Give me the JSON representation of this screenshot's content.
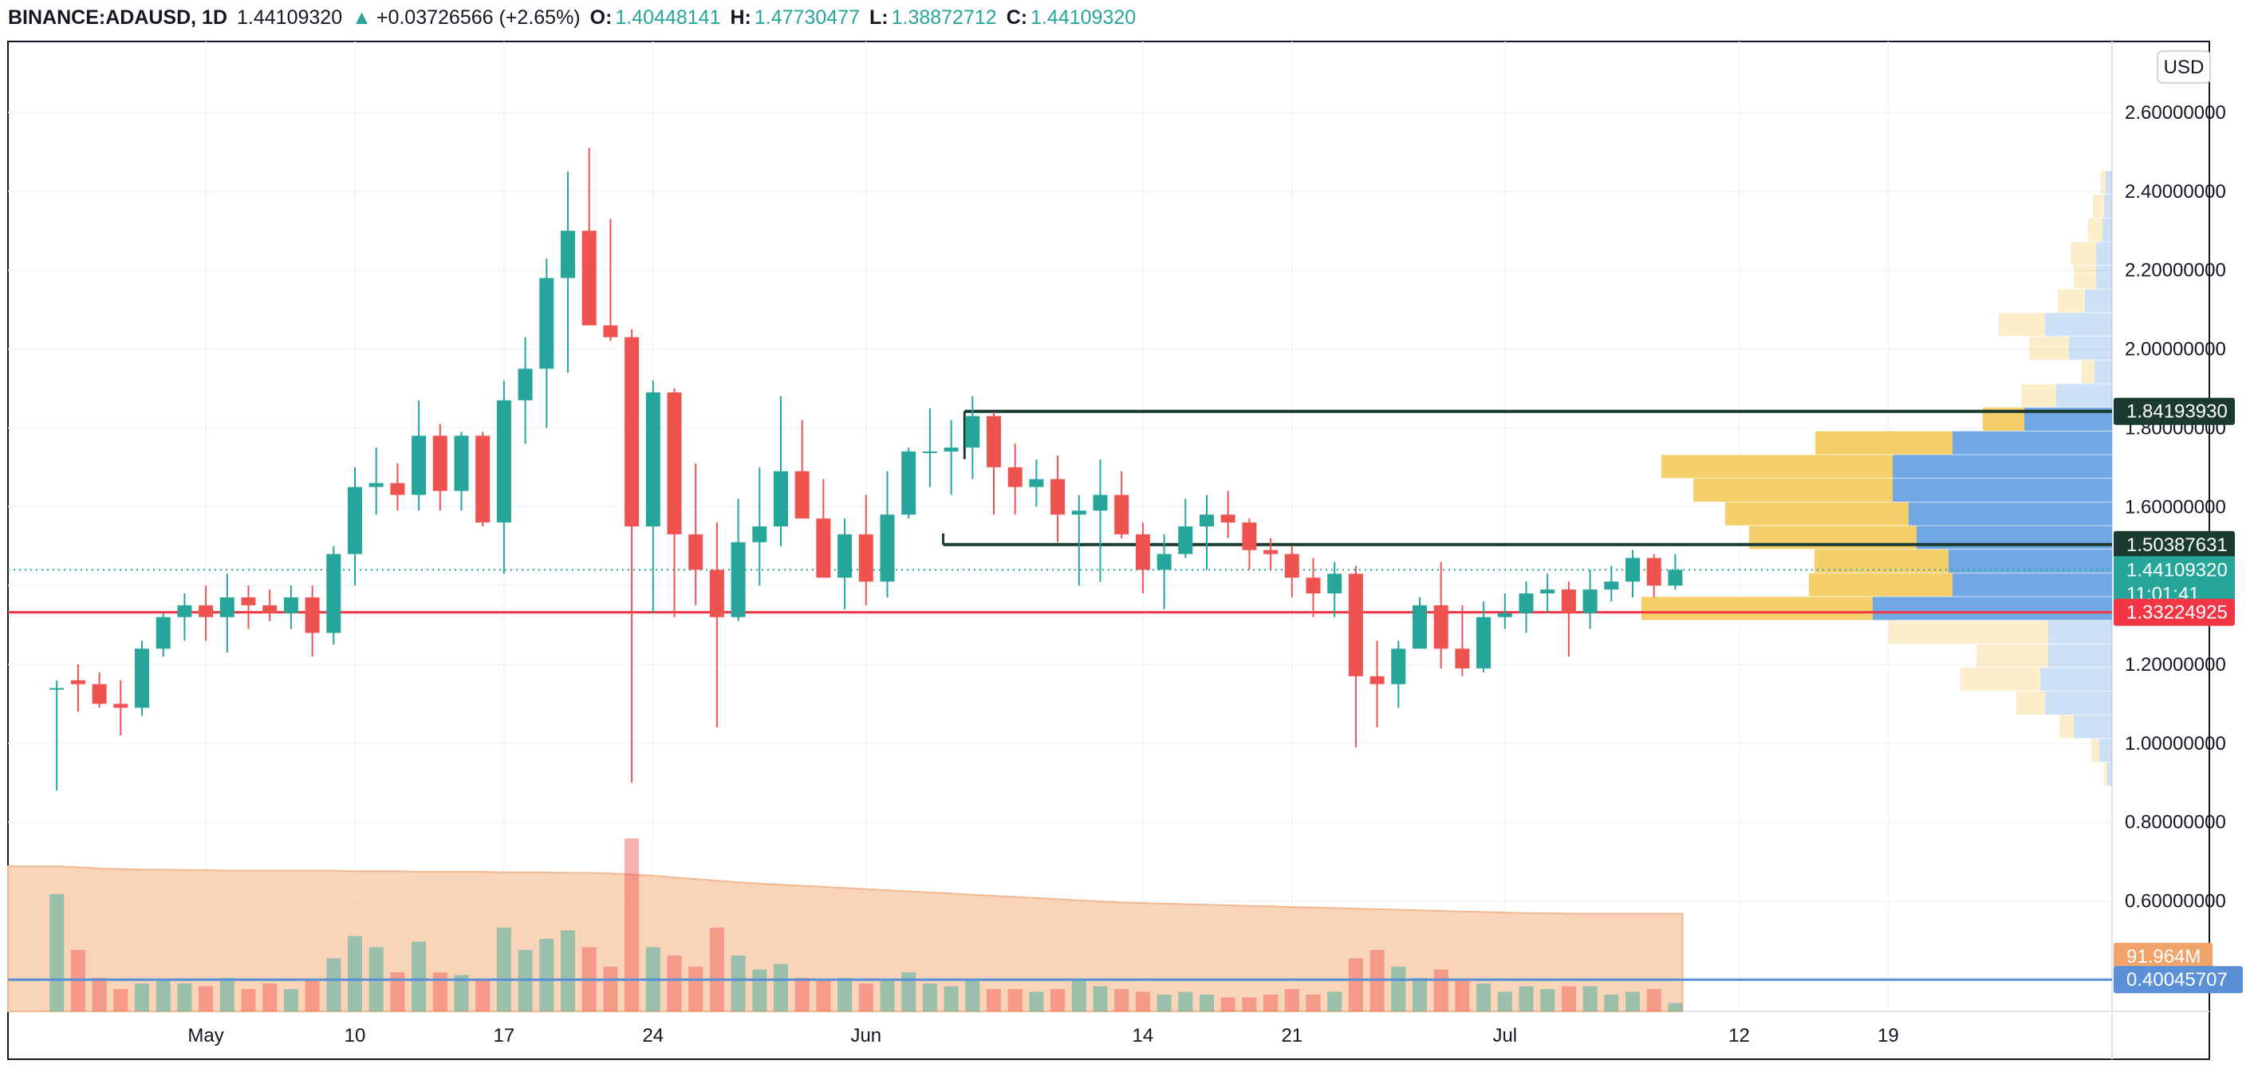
{
  "header": {
    "symbol": "BINANCE:ADAUSD, 1D",
    "last": "1.44109320",
    "change_arrow": "▲",
    "change": "+0.03726566 (+2.65%)",
    "open_label": "O:",
    "open": "1.40448141",
    "high_label": "H:",
    "high": "1.47730477",
    "low_label": "L:",
    "low": "1.38872712",
    "close_label": "C:",
    "close": "1.44109320"
  },
  "currency_button": "USD",
  "price_labels": {
    "resistance": "1.84193930",
    "support_upper": "1.50387631",
    "last_price": "1.44109320",
    "countdown": "11:01:41",
    "red_line": "1.33224925",
    "volume_ma": "91.964M",
    "blue_line": "0.40045707"
  },
  "colors": {
    "up": "#26a69a",
    "down": "#ef5350",
    "resistance": "#1b3a32",
    "red_line": "#f23645",
    "blue_line": "#5b8fd6",
    "vp_up": "#f5cf6a",
    "vp_down": "#6fa8e4",
    "volume_ma_fill": "#f7c9a6"
  },
  "chart_data": {
    "type": "candlestick",
    "y_axis_ticks": [
      "2.60000000",
      "2.40000000",
      "2.20000000",
      "2.00000000",
      "1.80000000",
      "1.60000000",
      "1.40000000",
      "1.20000000",
      "1.00000000",
      "0.80000000",
      "0.60000000"
    ],
    "ylim": [
      0.32,
      2.78
    ],
    "x_axis_ticks": [
      {
        "label": "May",
        "day": 3
      },
      {
        "label": "10",
        "day": 10
      },
      {
        "label": "17",
        "day": 17
      },
      {
        "label": "24",
        "day": 24
      },
      {
        "label": "Jun",
        "day": 34
      },
      {
        "label": "14",
        "day": 47
      },
      {
        "label": "21",
        "day": 54
      },
      {
        "label": "Jul",
        "day": 64
      },
      {
        "label": "12",
        "day": 75
      },
      {
        "label": "19",
        "day": 82
      }
    ],
    "horizontal_lines": [
      {
        "price": 1.8419393,
        "day_start": 39,
        "label_key": "resistance"
      },
      {
        "price": 1.50387631,
        "day_start": 38,
        "label_key": "support_upper"
      },
      {
        "price": 1.33224925,
        "day_start": null,
        "label_key": "red_line"
      },
      {
        "price": 0.40045707,
        "day_start": null,
        "label_key": "blue_line"
      }
    ],
    "candles": [
      {
        "day": -4,
        "o": 1.14,
        "h": 1.16,
        "l": 0.88,
        "c": 1.14,
        "v": 210
      },
      {
        "day": -3,
        "o": 1.16,
        "h": 1.2,
        "l": 1.08,
        "c": 1.15,
        "v": 110
      },
      {
        "day": -2,
        "o": 1.15,
        "h": 1.18,
        "l": 1.09,
        "c": 1.1,
        "v": 60
      },
      {
        "day": -1,
        "o": 1.1,
        "h": 1.16,
        "l": 1.02,
        "c": 1.09,
        "v": 40
      },
      {
        "day": 0,
        "o": 1.09,
        "h": 1.26,
        "l": 1.07,
        "c": 1.24,
        "v": 50
      },
      {
        "day": 1,
        "o": 1.24,
        "h": 1.33,
        "l": 1.22,
        "c": 1.32,
        "v": 55
      },
      {
        "day": 2,
        "o": 1.32,
        "h": 1.38,
        "l": 1.26,
        "c": 1.35,
        "v": 50
      },
      {
        "day": 3,
        "o": 1.35,
        "h": 1.4,
        "l": 1.26,
        "c": 1.32,
        "v": 45
      },
      {
        "day": 4,
        "o": 1.32,
        "h": 1.43,
        "l": 1.23,
        "c": 1.37,
        "v": 60
      },
      {
        "day": 5,
        "o": 1.37,
        "h": 1.4,
        "l": 1.29,
        "c": 1.35,
        "v": 40
      },
      {
        "day": 6,
        "o": 1.35,
        "h": 1.39,
        "l": 1.31,
        "c": 1.33,
        "v": 50
      },
      {
        "day": 7,
        "o": 1.33,
        "h": 1.4,
        "l": 1.29,
        "c": 1.37,
        "v": 40
      },
      {
        "day": 8,
        "o": 1.37,
        "h": 1.4,
        "l": 1.22,
        "c": 1.28,
        "v": 55
      },
      {
        "day": 9,
        "o": 1.28,
        "h": 1.5,
        "l": 1.25,
        "c": 1.48,
        "v": 95
      },
      {
        "day": 10,
        "o": 1.48,
        "h": 1.7,
        "l": 1.4,
        "c": 1.65,
        "v": 135
      },
      {
        "day": 11,
        "o": 1.65,
        "h": 1.75,
        "l": 1.58,
        "c": 1.66,
        "v": 115
      },
      {
        "day": 12,
        "o": 1.66,
        "h": 1.71,
        "l": 1.59,
        "c": 1.63,
        "v": 70
      },
      {
        "day": 13,
        "o": 1.63,
        "h": 1.87,
        "l": 1.59,
        "c": 1.78,
        "v": 125
      },
      {
        "day": 14,
        "o": 1.78,
        "h": 1.81,
        "l": 1.59,
        "c": 1.64,
        "v": 70
      },
      {
        "day": 15,
        "o": 1.64,
        "h": 1.79,
        "l": 1.59,
        "c": 1.78,
        "v": 65
      },
      {
        "day": 16,
        "o": 1.78,
        "h": 1.79,
        "l": 1.55,
        "c": 1.56,
        "v": 55
      },
      {
        "day": 17,
        "o": 1.56,
        "h": 1.92,
        "l": 1.43,
        "c": 1.87,
        "v": 150
      },
      {
        "day": 18,
        "o": 1.87,
        "h": 2.03,
        "l": 1.76,
        "c": 1.95,
        "v": 110
      },
      {
        "day": 19,
        "o": 1.95,
        "h": 2.23,
        "l": 1.8,
        "c": 2.18,
        "v": 130
      },
      {
        "day": 20,
        "o": 2.18,
        "h": 2.45,
        "l": 1.94,
        "c": 2.3,
        "v": 145
      },
      {
        "day": 21,
        "o": 2.3,
        "h": 2.51,
        "l": 2.07,
        "c": 2.06,
        "v": 115
      },
      {
        "day": 22,
        "o": 2.06,
        "h": 2.33,
        "l": 2.02,
        "c": 2.03,
        "v": 80
      },
      {
        "day": 23,
        "o": 2.03,
        "h": 2.05,
        "l": 0.9,
        "c": 1.55,
        "v": 310
      },
      {
        "day": 24,
        "o": 1.55,
        "h": 1.92,
        "l": 1.33,
        "c": 1.89,
        "v": 115
      },
      {
        "day": 25,
        "o": 1.89,
        "h": 1.9,
        "l": 1.32,
        "c": 1.53,
        "v": 100
      },
      {
        "day": 26,
        "o": 1.53,
        "h": 1.71,
        "l": 1.35,
        "c": 1.44,
        "v": 80
      },
      {
        "day": 27,
        "o": 1.44,
        "h": 1.56,
        "l": 1.04,
        "c": 1.32,
        "v": 150
      },
      {
        "day": 28,
        "o": 1.32,
        "h": 1.62,
        "l": 1.31,
        "c": 1.51,
        "v": 100
      },
      {
        "day": 29,
        "o": 1.51,
        "h": 1.7,
        "l": 1.4,
        "c": 1.55,
        "v": 75
      },
      {
        "day": 30,
        "o": 1.55,
        "h": 1.88,
        "l": 1.5,
        "c": 1.69,
        "v": 85
      },
      {
        "day": 31,
        "o": 1.69,
        "h": 1.82,
        "l": 1.58,
        "c": 1.57,
        "v": 60
      },
      {
        "day": 32,
        "o": 1.57,
        "h": 1.67,
        "l": 1.42,
        "c": 1.42,
        "v": 55
      },
      {
        "day": 33,
        "o": 1.42,
        "h": 1.57,
        "l": 1.34,
        "c": 1.53,
        "v": 60
      },
      {
        "day": 34,
        "o": 1.53,
        "h": 1.63,
        "l": 1.35,
        "c": 1.41,
        "v": 50
      },
      {
        "day": 35,
        "o": 1.41,
        "h": 1.69,
        "l": 1.37,
        "c": 1.58,
        "v": 55
      },
      {
        "day": 36,
        "o": 1.58,
        "h": 1.75,
        "l": 1.57,
        "c": 1.74,
        "v": 70
      },
      {
        "day": 37,
        "o": 1.74,
        "h": 1.85,
        "l": 1.65,
        "c": 1.74,
        "v": 50
      },
      {
        "day": 38,
        "o": 1.74,
        "h": 1.82,
        "l": 1.63,
        "c": 1.75,
        "v": 45
      },
      {
        "day": 39,
        "o": 1.75,
        "h": 1.88,
        "l": 1.67,
        "c": 1.83,
        "v": 55
      },
      {
        "day": 40,
        "o": 1.83,
        "h": 1.84,
        "l": 1.58,
        "c": 1.7,
        "v": 40
      },
      {
        "day": 41,
        "o": 1.7,
        "h": 1.76,
        "l": 1.58,
        "c": 1.65,
        "v": 40
      },
      {
        "day": 42,
        "o": 1.65,
        "h": 1.72,
        "l": 1.6,
        "c": 1.67,
        "v": 35
      },
      {
        "day": 43,
        "o": 1.67,
        "h": 1.73,
        "l": 1.51,
        "c": 1.58,
        "v": 40
      },
      {
        "day": 44,
        "o": 1.58,
        "h": 1.63,
        "l": 1.4,
        "c": 1.59,
        "v": 55
      },
      {
        "day": 45,
        "o": 1.59,
        "h": 1.72,
        "l": 1.41,
        "c": 1.63,
        "v": 45
      },
      {
        "day": 46,
        "o": 1.63,
        "h": 1.69,
        "l": 1.52,
        "c": 1.53,
        "v": 40
      },
      {
        "day": 47,
        "o": 1.53,
        "h": 1.56,
        "l": 1.38,
        "c": 1.44,
        "v": 35
      },
      {
        "day": 48,
        "o": 1.44,
        "h": 1.53,
        "l": 1.34,
        "c": 1.48,
        "v": 30
      },
      {
        "day": 49,
        "o": 1.48,
        "h": 1.62,
        "l": 1.47,
        "c": 1.55,
        "v": 35
      },
      {
        "day": 50,
        "o": 1.55,
        "h": 1.63,
        "l": 1.44,
        "c": 1.58,
        "v": 30
      },
      {
        "day": 51,
        "o": 1.58,
        "h": 1.64,
        "l": 1.52,
        "c": 1.56,
        "v": 25
      },
      {
        "day": 52,
        "o": 1.56,
        "h": 1.57,
        "l": 1.44,
        "c": 1.49,
        "v": 25
      },
      {
        "day": 53,
        "o": 1.49,
        "h": 1.52,
        "l": 1.44,
        "c": 1.48,
        "v": 30
      },
      {
        "day": 54,
        "o": 1.48,
        "h": 1.5,
        "l": 1.37,
        "c": 1.42,
        "v": 40
      },
      {
        "day": 55,
        "o": 1.42,
        "h": 1.47,
        "l": 1.32,
        "c": 1.38,
        "v": 30
      },
      {
        "day": 56,
        "o": 1.38,
        "h": 1.46,
        "l": 1.32,
        "c": 1.43,
        "v": 35
      },
      {
        "day": 57,
        "o": 1.43,
        "h": 1.45,
        "l": 0.99,
        "c": 1.17,
        "v": 95
      },
      {
        "day": 58,
        "o": 1.17,
        "h": 1.26,
        "l": 1.04,
        "c": 1.15,
        "v": 110
      },
      {
        "day": 59,
        "o": 1.15,
        "h": 1.26,
        "l": 1.09,
        "c": 1.24,
        "v": 80
      },
      {
        "day": 60,
        "o": 1.24,
        "h": 1.37,
        "l": 1.24,
        "c": 1.35,
        "v": 60
      },
      {
        "day": 61,
        "o": 1.35,
        "h": 1.46,
        "l": 1.19,
        "c": 1.24,
        "v": 75
      },
      {
        "day": 62,
        "o": 1.24,
        "h": 1.35,
        "l": 1.17,
        "c": 1.19,
        "v": 55
      },
      {
        "day": 63,
        "o": 1.19,
        "h": 1.36,
        "l": 1.18,
        "c": 1.32,
        "v": 50
      },
      {
        "day": 64,
        "o": 1.32,
        "h": 1.38,
        "l": 1.29,
        "c": 1.33,
        "v": 35
      },
      {
        "day": 65,
        "o": 1.33,
        "h": 1.41,
        "l": 1.28,
        "c": 1.38,
        "v": 45
      },
      {
        "day": 66,
        "o": 1.38,
        "h": 1.43,
        "l": 1.33,
        "c": 1.39,
        "v": 40
      },
      {
        "day": 67,
        "o": 1.39,
        "h": 1.41,
        "l": 1.22,
        "c": 1.33,
        "v": 45
      },
      {
        "day": 68,
        "o": 1.33,
        "h": 1.44,
        "l": 1.29,
        "c": 1.39,
        "v": 45
      },
      {
        "day": 69,
        "o": 1.39,
        "h": 1.45,
        "l": 1.36,
        "c": 1.41,
        "v": 30
      },
      {
        "day": 70,
        "o": 1.41,
        "h": 1.49,
        "l": 1.37,
        "c": 1.47,
        "v": 35
      },
      {
        "day": 71,
        "o": 1.47,
        "h": 1.48,
        "l": 1.37,
        "c": 1.4,
        "v": 40
      },
      {
        "day": 72,
        "o": 1.4,
        "h": 1.48,
        "l": 1.39,
        "c": 1.44,
        "v": 15
      }
    ],
    "volume_ma": [
      260,
      258,
      256,
      255,
      254,
      254,
      253,
      253,
      252,
      252,
      252,
      252,
      252,
      252,
      251,
      251,
      251,
      250,
      250,
      250,
      250,
      249,
      249,
      249,
      248,
      248,
      247,
      245,
      243,
      240,
      237,
      234,
      231,
      229,
      227,
      225,
      223,
      221,
      219,
      217,
      215,
      213,
      211,
      209,
      207,
      205,
      203,
      201,
      199,
      197,
      195,
      194,
      193,
      192,
      191,
      190,
      189,
      188,
      187,
      186,
      185,
      184,
      183,
      182,
      181,
      180,
      179,
      178,
      177,
      176,
      176,
      175,
      175
    ],
    "volume_profile": [
      {
        "p": 2.42,
        "up": 6,
        "dn": 8
      },
      {
        "p": 2.36,
        "up": 14,
        "dn": 10
      },
      {
        "p": 2.3,
        "up": 18,
        "dn": 12
      },
      {
        "p": 2.24,
        "up": 32,
        "dn": 20
      },
      {
        "p": 2.18,
        "up": 28,
        "dn": 20
      },
      {
        "p": 2.12,
        "up": 34,
        "dn": 34
      },
      {
        "p": 2.06,
        "up": 58,
        "dn": 84
      },
      {
        "p": 2.0,
        "up": 50,
        "dn": 54
      },
      {
        "p": 1.94,
        "up": 16,
        "dn": 22
      },
      {
        "p": 1.88,
        "up": 44,
        "dn": 70
      },
      {
        "p": 1.82,
        "up": 52,
        "dn": 110
      },
      {
        "p": 1.76,
        "up": 172,
        "dn": 200
      },
      {
        "p": 1.7,
        "up": 290,
        "dn": 275
      },
      {
        "p": 1.64,
        "up": 250,
        "dn": 275
      },
      {
        "p": 1.58,
        "up": 230,
        "dn": 255
      },
      {
        "p": 1.52,
        "up": 210,
        "dn": 245
      },
      {
        "p": 1.46,
        "up": 168,
        "dn": 205
      },
      {
        "p": 1.4,
        "up": 180,
        "dn": 200
      },
      {
        "p": 1.34,
        "up": 290,
        "dn": 300
      },
      {
        "p": 1.28,
        "up": 200,
        "dn": 80
      },
      {
        "p": 1.22,
        "up": 90,
        "dn": 80
      },
      {
        "p": 1.16,
        "up": 100,
        "dn": 90
      },
      {
        "p": 1.1,
        "up": 36,
        "dn": 84
      },
      {
        "p": 1.04,
        "up": 18,
        "dn": 48
      },
      {
        "p": 0.98,
        "up": 10,
        "dn": 16
      },
      {
        "p": 0.92,
        "up": 4,
        "dn": 6
      }
    ]
  }
}
